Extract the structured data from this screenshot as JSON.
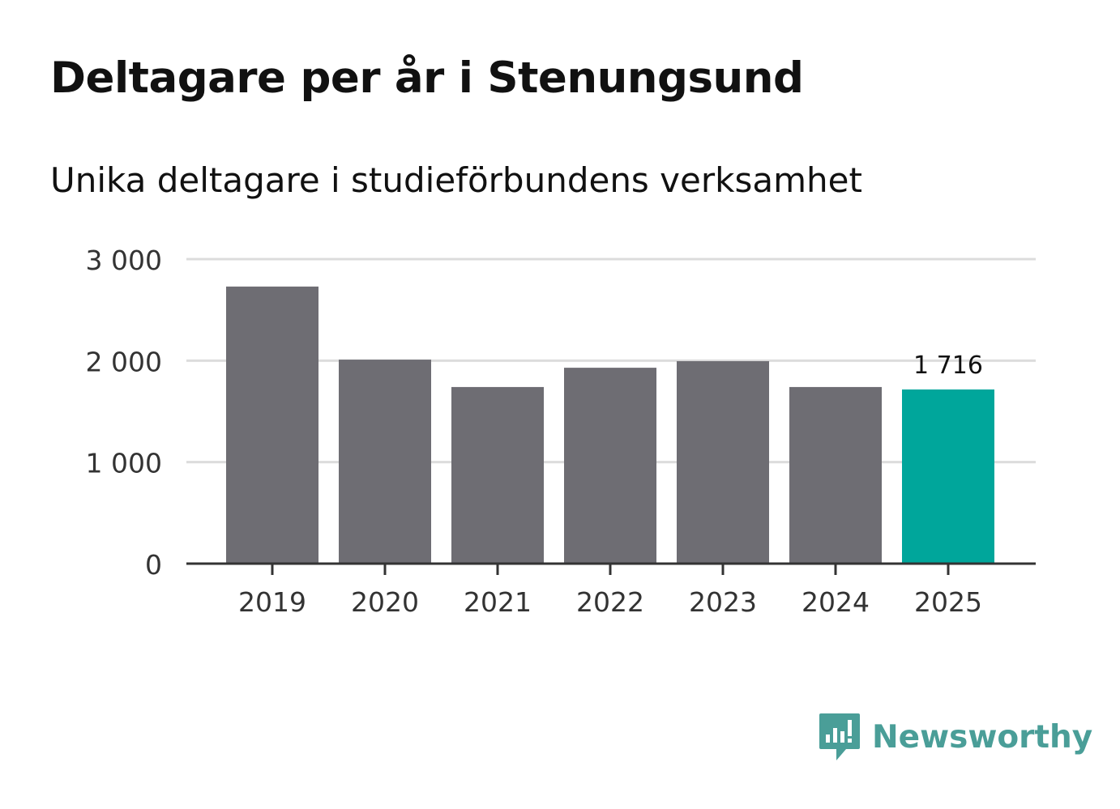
{
  "header": {
    "title": "Deltagare per år i Stenungsund",
    "subtitle": "Unika deltagare i studieförbundens verksamhet"
  },
  "colors": {
    "bar": "#6e6d73",
    "highlight": "#00a69b",
    "grid": "#dcdcdc",
    "axis": "#333333",
    "text": "#111111",
    "tick_text": "#333333",
    "brand": "#4a9e98"
  },
  "brand": {
    "name": "Newsworthy",
    "icon": "bar-chart-speech-icon"
  },
  "chart_data": {
    "type": "bar",
    "title": "Deltagare per år i Stenungsund",
    "subtitle": "Unika deltagare i studieförbundens verksamhet",
    "xlabel": "",
    "ylabel": "",
    "categories": [
      "2019",
      "2020",
      "2021",
      "2022",
      "2023",
      "2024",
      "2025"
    ],
    "values": [
      2730,
      2010,
      1740,
      1930,
      1995,
      1740,
      1716
    ],
    "highlight_index": 6,
    "data_labels": [
      {
        "index": 6,
        "text": "1 716"
      }
    ],
    "ylim": [
      0,
      3000
    ],
    "yticks": [
      0,
      1000,
      2000,
      3000
    ],
    "ytick_labels": [
      "0",
      "1 000",
      "2 000",
      "3 000"
    ],
    "grid": true,
    "legend": "none"
  }
}
